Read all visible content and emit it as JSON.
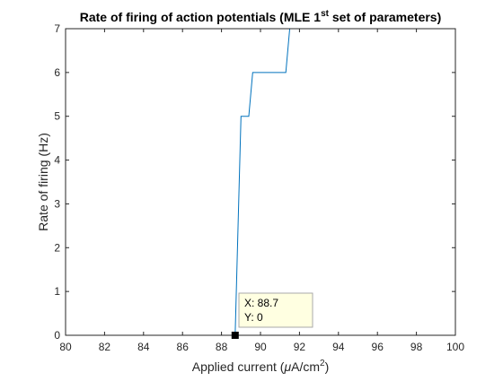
{
  "chart_data": {
    "type": "line",
    "title": {
      "main": "Rate of firing of action potentials (MLE 1",
      "sup": "st",
      "rest": " set of parameters)"
    },
    "xlabel": {
      "pre": "Applied current (",
      "mu": "μ",
      "unit": "A/cm",
      "sup": "2",
      "post": ")"
    },
    "ylabel": "Rate of firing (Hz)",
    "xlim": [
      80,
      100
    ],
    "ylim": [
      0,
      7
    ],
    "xticks": [
      80,
      82,
      84,
      86,
      88,
      90,
      92,
      94,
      96,
      98,
      100
    ],
    "yticks": [
      0,
      1,
      2,
      3,
      4,
      5,
      6,
      7
    ],
    "grid": false,
    "series": [
      {
        "color": "#0072BD",
        "points": [
          [
            80,
            0
          ],
          [
            88.7,
            0
          ],
          [
            89.0,
            5
          ],
          [
            89.4,
            5
          ],
          [
            89.6,
            6
          ],
          [
            91.3,
            6
          ],
          [
            91.5,
            7
          ],
          [
            100,
            7
          ]
        ]
      }
    ],
    "datatip": {
      "x": 88.7,
      "y": 0,
      "x_text": "X: 88.7",
      "y_text": "Y: 0"
    }
  }
}
